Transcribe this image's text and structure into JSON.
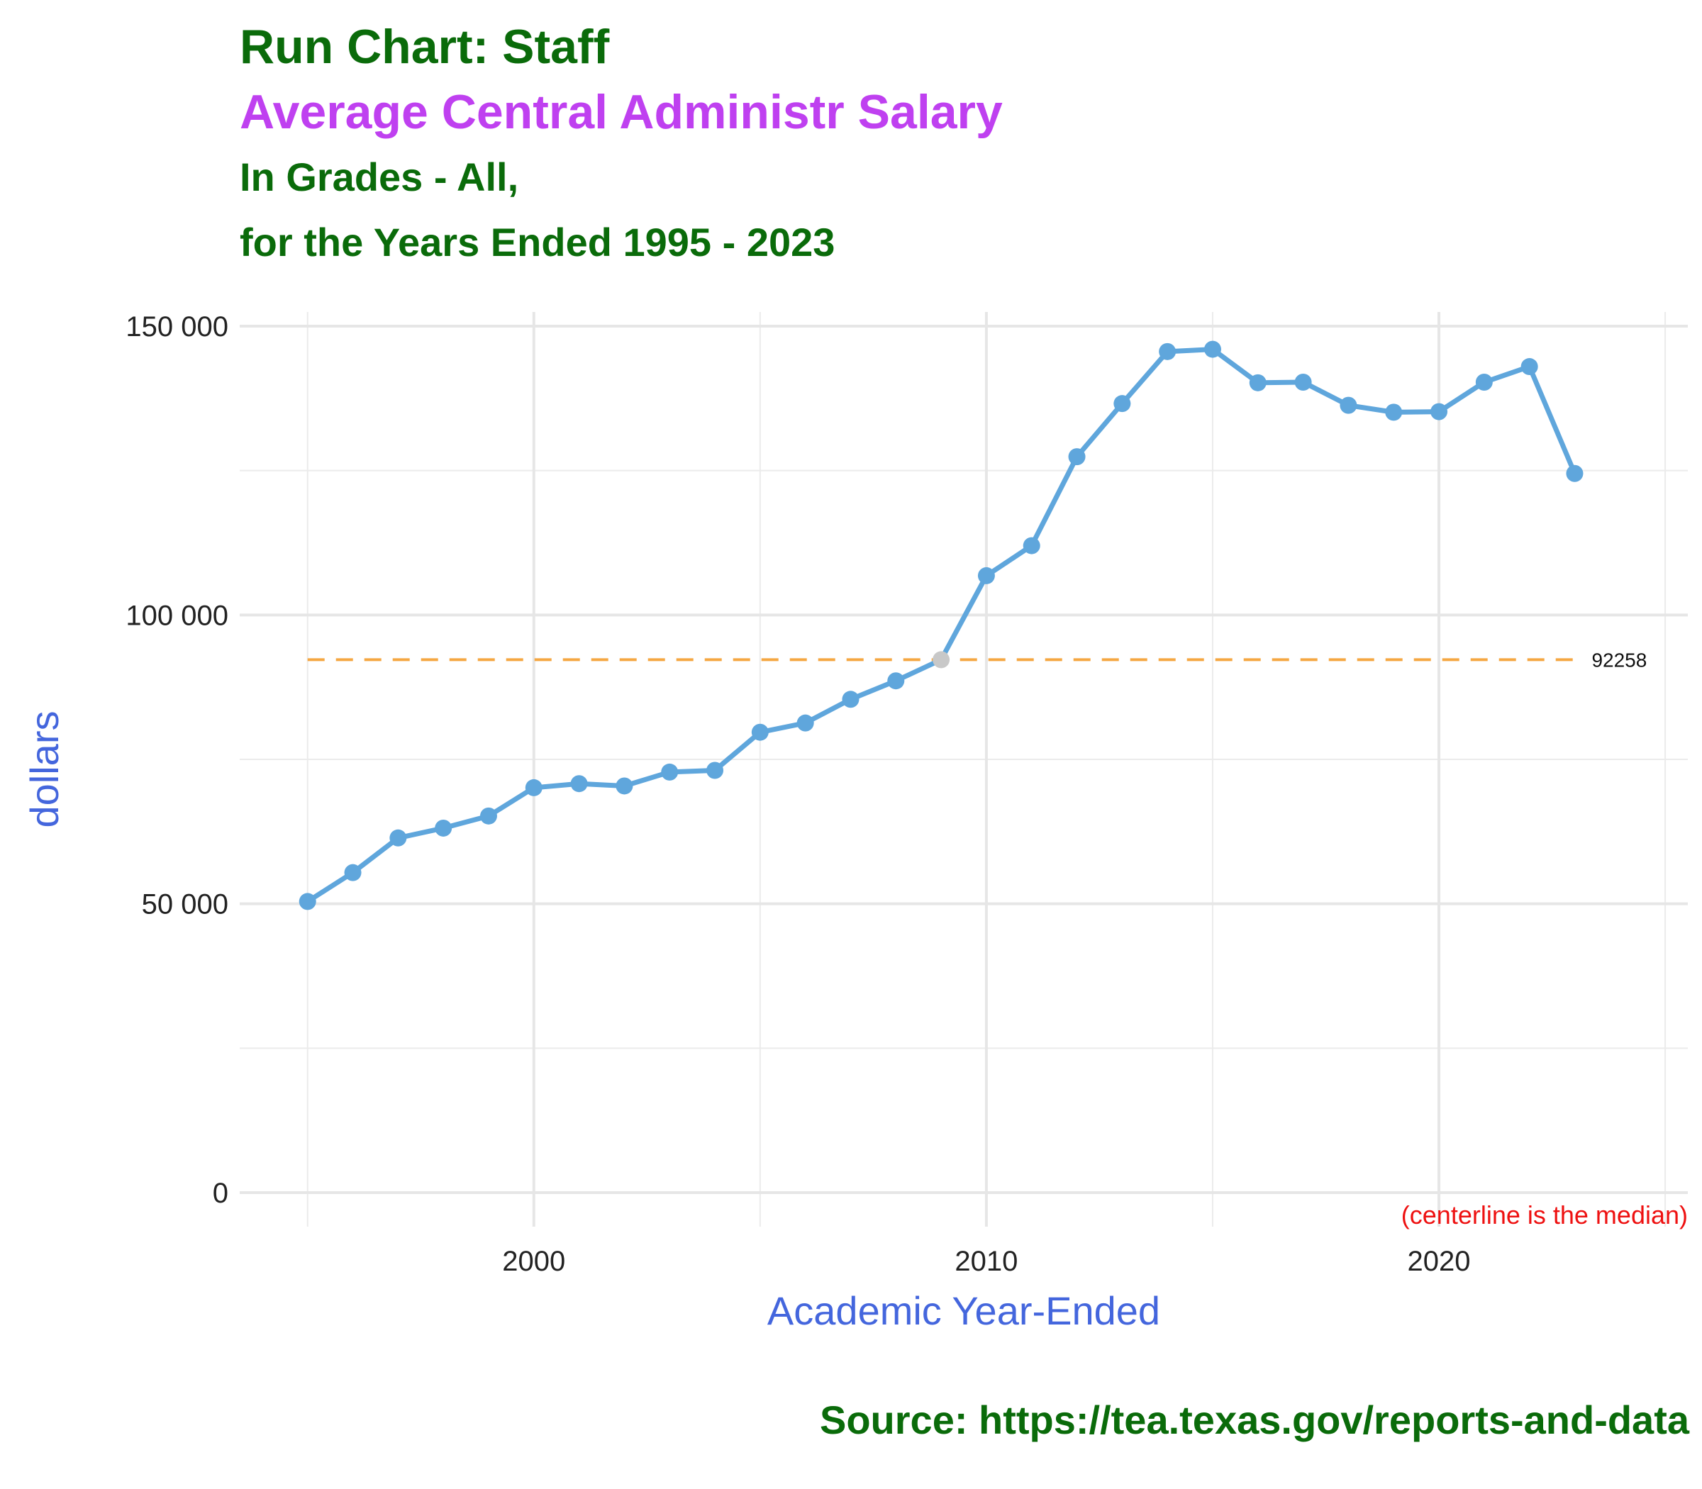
{
  "chart_data": {
    "type": "line",
    "title": "Run Chart: Staff",
    "subtitle": "Average Central Administr Salary",
    "subtitle2": "In Grades - All,",
    "subtitle3": "for the Years Ended 1995 - 2023",
    "xlabel": "Academic Year-Ended",
    "ylabel": "dollars",
    "source": "Source:  https://tea.texas.gov/reports-and-data",
    "note": "(centerline is the median)",
    "median_label": "92258",
    "median": 92258,
    "x_ticks": [
      2000,
      2010,
      2020
    ],
    "x_tick_labels": [
      "2000",
      "2010",
      "2020"
    ],
    "y_ticks": [
      0,
      50000,
      100000,
      150000
    ],
    "y_tick_labels": [
      "0",
      "50 000",
      "100 000",
      "150 000"
    ],
    "xlim": [
      1993.5,
      2025.5
    ],
    "ylim": [
      0,
      150000
    ],
    "grid": true,
    "colors": {
      "line": "#5fa6dc",
      "point": "#5fa6dc",
      "median_point": "#c8c8c8",
      "median_line": "#f5a742",
      "note": "#ee1111",
      "axis_title": "#4466dd"
    },
    "series": [
      {
        "x": [
          1995,
          1996,
          1997,
          1998,
          1999,
          2000,
          2001,
          2002,
          2003,
          2004,
          2005,
          2006,
          2007,
          2008,
          2009,
          2010,
          2011,
          2012,
          2013,
          2014,
          2015,
          2016,
          2017,
          2018,
          2019,
          2020,
          2021,
          2022,
          2023
        ],
        "values": [
          50400,
          55400,
          61400,
          63100,
          65200,
          70100,
          70800,
          70400,
          72800,
          73100,
          79700,
          81300,
          85400,
          88600,
          92258,
          106800,
          112000,
          127400,
          136600,
          145600,
          146000,
          140200,
          140300,
          136300,
          135100,
          135200,
          140300,
          143000,
          124500
        ]
      }
    ]
  }
}
